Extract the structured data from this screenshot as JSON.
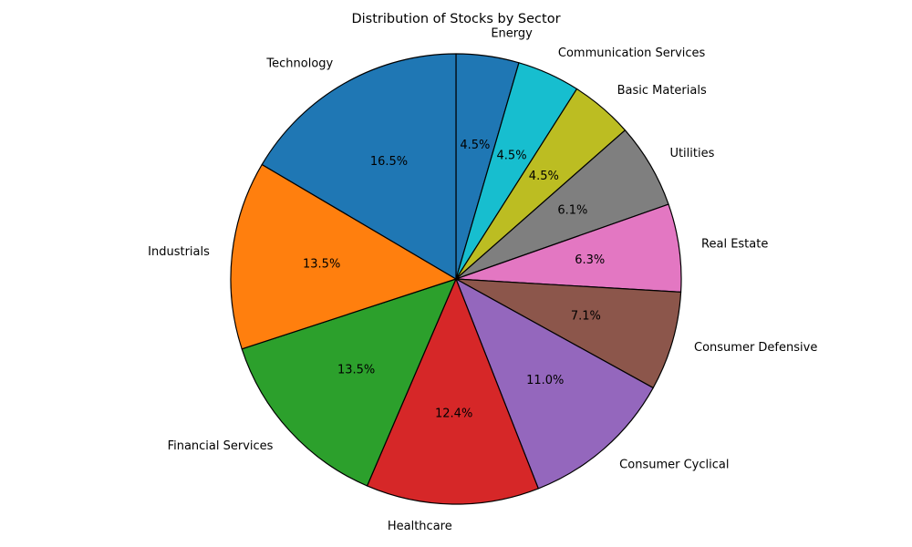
{
  "chart_data": {
    "type": "pie",
    "title": "Distribution of Stocks by Sector",
    "start_angle_deg": 90,
    "direction": "clockwise",
    "edge_color": "#000000",
    "slices": [
      {
        "label": "Energy",
        "value": 4.5,
        "pct_label": "4.5%",
        "color": "#1f77b4"
      },
      {
        "label": "Communication Services",
        "value": 4.5,
        "pct_label": "4.5%",
        "color": "#17becf"
      },
      {
        "label": "Basic Materials",
        "value": 4.5,
        "pct_label": "4.5%",
        "color": "#bcbd22"
      },
      {
        "label": "Utilities",
        "value": 6.1,
        "pct_label": "6.1%",
        "color": "#7f7f7f"
      },
      {
        "label": "Real Estate",
        "value": 6.3,
        "pct_label": "6.3%",
        "color": "#e377c2"
      },
      {
        "label": "Consumer Defensive",
        "value": 7.1,
        "pct_label": "7.1%",
        "color": "#8c564b"
      },
      {
        "label": "Consumer Cyclical",
        "value": 11.0,
        "pct_label": "11.0%",
        "color": "#9467bd"
      },
      {
        "label": "Healthcare",
        "value": 12.4,
        "pct_label": "12.4%",
        "color": "#d62728"
      },
      {
        "label": "Financial Services",
        "value": 13.5,
        "pct_label": "13.5%",
        "color": "#2ca02c"
      },
      {
        "label": "Industrials",
        "value": 13.5,
        "pct_label": "13.5%",
        "color": "#ff7f0e"
      },
      {
        "label": "Technology",
        "value": 16.5,
        "pct_label": "16.5%",
        "color": "#1f77b4"
      }
    ]
  }
}
